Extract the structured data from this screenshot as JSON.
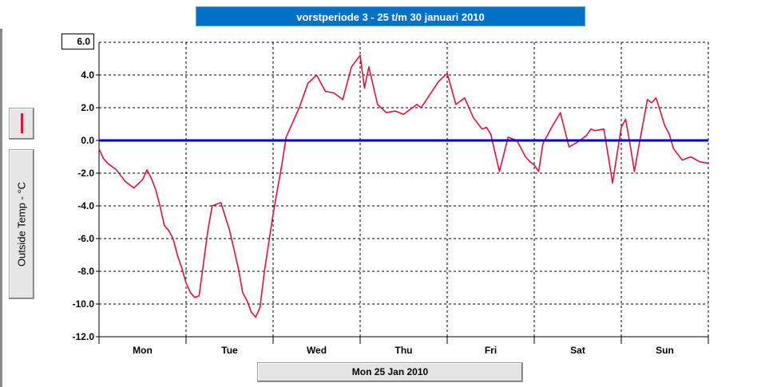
{
  "chart_data": {
    "type": "line",
    "title": "vorstperiode 3 - 25 t/m 30 januari 2010",
    "ylabel": "Outside Temp - °C",
    "xlabel": "Mon 25 Jan 2010",
    "ylim": [
      -12,
      6
    ],
    "yticks": [
      "6.0",
      "4.0",
      "2.0",
      "0.0",
      "-2.0",
      "-4.0",
      "-6.0",
      "-8.0",
      "-10.0",
      "-12.0"
    ],
    "ytick_values": [
      6,
      4,
      2,
      0,
      -2,
      -4,
      -6,
      -8,
      -10,
      -12
    ],
    "categories": [
      "Mon",
      "Tue",
      "Wed",
      "Thu",
      "Fri",
      "Sat",
      "Sun"
    ],
    "xlim": [
      0,
      7
    ],
    "grid": true,
    "reference_line": {
      "value": 0,
      "color": "#0000e0"
    },
    "series": [
      {
        "color": "#dc143c",
        "x": [
          0,
          0.05,
          0.1,
          0.2,
          0.3,
          0.4,
          0.5,
          0.55,
          0.6,
          0.65,
          0.7,
          0.75,
          0.8,
          0.85,
          0.9,
          0.95,
          1.0,
          1.05,
          1.1,
          1.15,
          1.2,
          1.25,
          1.3,
          1.4,
          1.5,
          1.6,
          1.65,
          1.7,
          1.75,
          1.8,
          1.85,
          1.9,
          2.0,
          2.05,
          2.1,
          2.15,
          2.2,
          2.3,
          2.4,
          2.5,
          2.6,
          2.7,
          2.8,
          2.9,
          3.0,
          3.05,
          3.1,
          3.2,
          3.3,
          3.4,
          3.5,
          3.55,
          3.6,
          3.65,
          3.7,
          3.75,
          3.8,
          3.85,
          3.9,
          4.0,
          4.1,
          4.2,
          4.3,
          4.4,
          4.45,
          4.5,
          4.6,
          4.7,
          4.8,
          4.9,
          4.95,
          5.0,
          5.05,
          5.1,
          5.2,
          5.3,
          5.4,
          5.5,
          5.6,
          5.65,
          5.7,
          5.8,
          5.9,
          6.0,
          6.05,
          6.1,
          6.15,
          6.2,
          6.3,
          6.35,
          6.4,
          6.5,
          6.55,
          6.6,
          6.7,
          6.8,
          6.9,
          7.0
        ],
        "y": [
          -0.5,
          -1.1,
          -1.4,
          -1.8,
          -2.5,
          -2.9,
          -2.4,
          -1.8,
          -2.3,
          -3.0,
          -4.0,
          -5.2,
          -5.5,
          -6.0,
          -7.0,
          -7.8,
          -8.7,
          -9.3,
          -9.6,
          -9.5,
          -7.5,
          -5.5,
          -4.0,
          -3.8,
          -5.5,
          -7.8,
          -9.3,
          -9.8,
          -10.5,
          -10.8,
          -10.2,
          -8.0,
          -4.5,
          -3.0,
          -1.5,
          0.2,
          0.8,
          2.0,
          3.5,
          4.0,
          3.0,
          2.9,
          2.5,
          4.5,
          5.2,
          3.2,
          4.5,
          2.2,
          1.7,
          1.8,
          1.6,
          1.8,
          2.0,
          2.2,
          2.0,
          2.4,
          2.8,
          3.2,
          3.6,
          4.1,
          2.2,
          2.6,
          1.4,
          0.7,
          0.8,
          0.4,
          -1.9,
          0.2,
          0.0,
          -1.0,
          -1.3,
          -1.5,
          -1.9,
          -0.2,
          0.8,
          1.7,
          -0.4,
          -0.1,
          0.3,
          0.7,
          0.6,
          0.7,
          -2.6,
          0.8,
          1.3,
          -0.2,
          -1.9,
          -0.4,
          2.5,
          2.3,
          2.6,
          0.9,
          0.4,
          -0.5,
          -1.2,
          -1.0,
          -1.3,
          -1.4
        ]
      }
    ]
  }
}
